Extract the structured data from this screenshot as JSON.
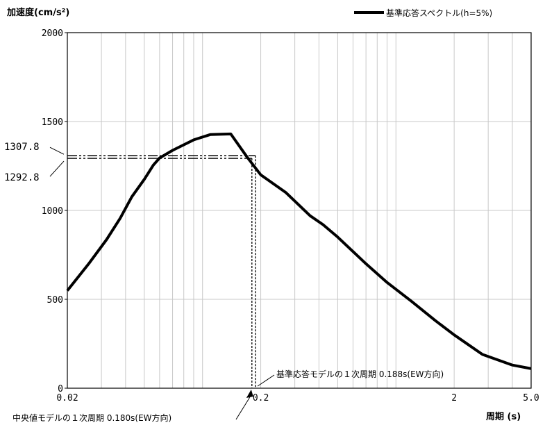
{
  "chart_data": {
    "type": "line",
    "xscale": "log",
    "ylabel": "加速度(cm/s²)",
    "xlabel": "周期 (s)",
    "legend": {
      "label": "基準応答スペクトル(h=5%)",
      "placement": "top-right"
    },
    "xlim": [
      0.02,
      5.0
    ],
    "ylim": [
      0,
      2000
    ],
    "y_ticks": [
      "0",
      "500",
      "1000",
      "1500",
      "2000"
    ],
    "x_ticks": [
      {
        "value": 0.02,
        "label": "0.02"
      },
      {
        "value": 0.2,
        "label": "0.2"
      },
      {
        "value": 2,
        "label": "2"
      },
      {
        "value": 5.0,
        "label": "5.0"
      }
    ],
    "series": [
      {
        "name": "基準応答スペクトル(h=5%)",
        "x": [
          0.02,
          0.0258,
          0.0319,
          0.0375,
          0.0431,
          0.05,
          0.0557,
          0.06,
          0.07,
          0.09,
          0.11,
          0.14,
          0.17,
          0.2,
          0.27,
          0.36,
          0.42,
          0.5,
          0.7,
          0.9,
          1.2,
          1.6,
          2.0,
          2.8,
          4.0,
          5.0
        ],
        "y": [
          549,
          700,
          836,
          956,
          1077,
          1175,
          1255,
          1295,
          1338,
          1397,
          1427,
          1430,
          1300,
          1200,
          1100,
          970,
          920,
          850,
          700,
          595,
          490,
          380,
          300,
          190,
          130,
          110
        ]
      }
    ],
    "annotations": {
      "levels": [
        {
          "value": 1307.8,
          "label": "1307.8"
        },
        {
          "value": 1292.8,
          "label": "1292.8"
        }
      ],
      "periods": [
        {
          "value": 0.188,
          "label": "基準応答モデルの１次周期 0.188s(EW方向)"
        },
        {
          "value": 0.18,
          "label": "中央値モデルの１次周期 0.180s(EW方向)"
        }
      ]
    },
    "grid": true,
    "colors": {
      "line": "#000000",
      "grid": "#c8c8c8",
      "axis": "#000000"
    }
  }
}
